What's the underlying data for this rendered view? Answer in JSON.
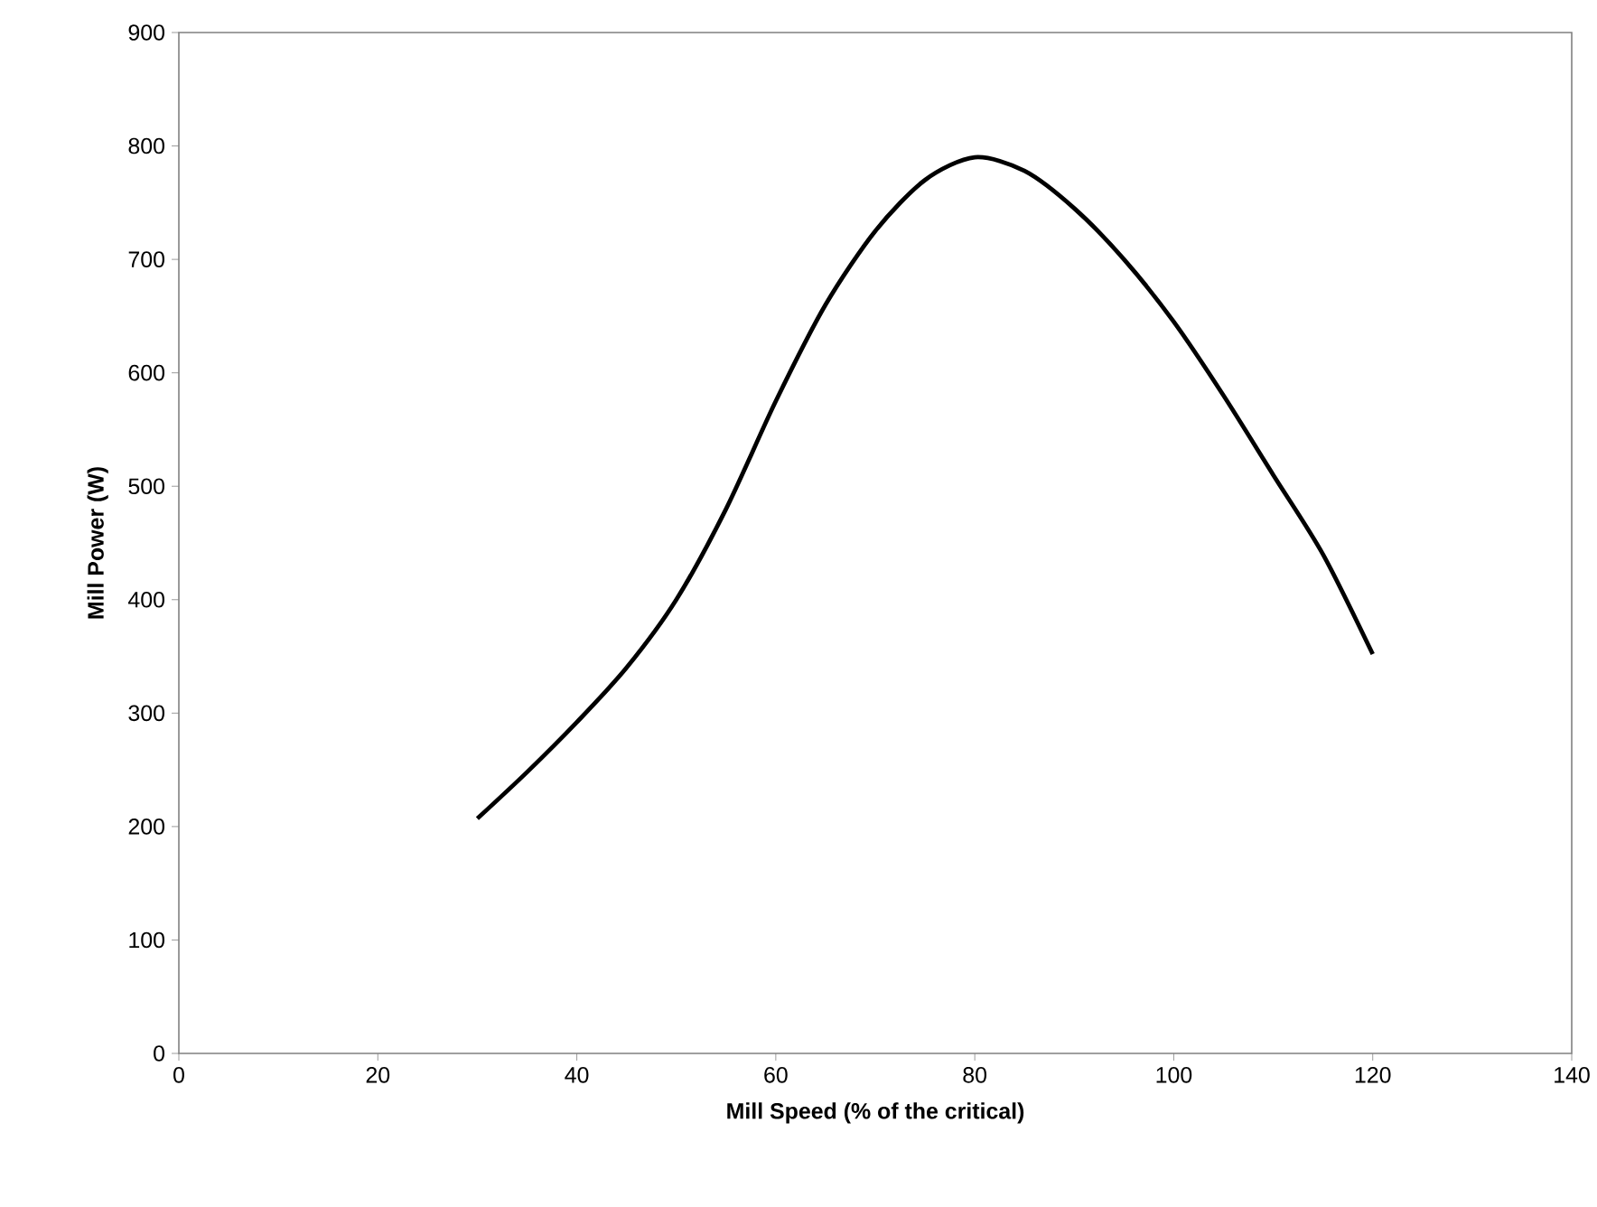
{
  "chart_data": {
    "type": "line",
    "xlabel": "Mill Speed (% of the critical)",
    "ylabel": "Mill Power (W)",
    "x": [
      30,
      35,
      40,
      45,
      50,
      55,
      60,
      65,
      70,
      75,
      80,
      85,
      90,
      95,
      100,
      105,
      110,
      115,
      120
    ],
    "series": [
      {
        "color": "#000000",
        "values": [
          207,
          248,
          292,
          340,
          400,
          480,
          575,
          660,
          725,
          770,
          790,
          778,
          745,
          700,
          645,
          580,
          510,
          440,
          352
        ]
      }
    ],
    "xlim": [
      0,
      140
    ],
    "xticks": [
      0,
      20,
      40,
      60,
      80,
      100,
      120,
      140
    ],
    "ylim": [
      0,
      900
    ],
    "yticks": [
      0,
      100,
      200,
      300,
      400,
      500,
      600,
      700,
      800,
      900
    ],
    "marker": "none",
    "line_style": "solid"
  }
}
